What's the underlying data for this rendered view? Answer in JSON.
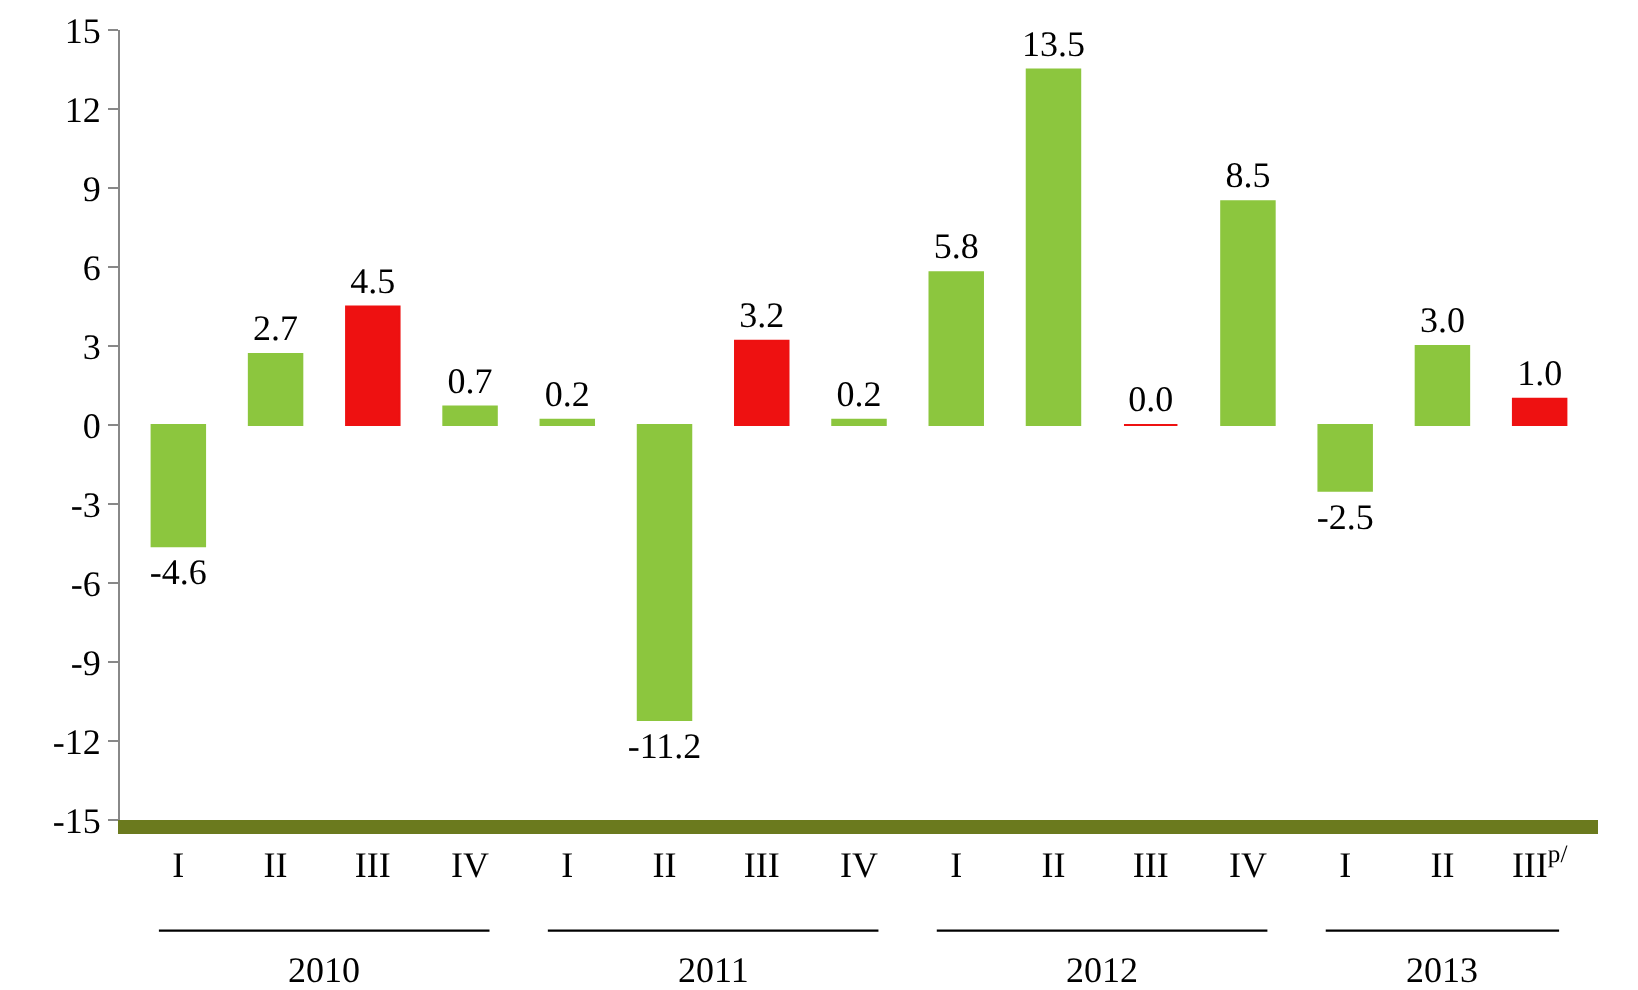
{
  "chart_data": {
    "type": "bar",
    "categories": [
      "I",
      "II",
      "III",
      "IV",
      "I",
      "II",
      "III",
      "IV",
      "I",
      "II",
      "III",
      "IV",
      "I",
      "II",
      "III$^{p/}$"
    ],
    "values": [
      -4.6,
      2.7,
      4.5,
      0.7,
      0.2,
      -11.2,
      3.2,
      0.2,
      5.8,
      13.5,
      0.0,
      8.5,
      -2.5,
      3.0,
      1.0
    ],
    "value_labels": [
      "-4.6",
      "2.7",
      "4.5",
      "0.7",
      "0.2",
      "-11.2",
      "3.2",
      "0.2",
      "5.8",
      "13.5",
      "0.0",
      "8.5",
      "-2.5",
      "3.0",
      "1.0"
    ],
    "colors": [
      "#8cc63e",
      "#8cc63e",
      "#ee1111",
      "#8cc63e",
      "#8cc63e",
      "#8cc63e",
      "#ee1111",
      "#8cc63e",
      "#8cc63e",
      "#8cc63e",
      "#ee1111",
      "#8cc63e",
      "#8cc63e",
      "#8cc63e",
      "#ee1111"
    ],
    "ylim": [
      -15,
      15
    ],
    "yticks": [
      -15,
      -12,
      -9,
      -6,
      -3,
      0,
      3,
      6,
      9,
      12,
      15
    ],
    "grid": false,
    "annotations": [
      "2010",
      "2011",
      "2012",
      "2013"
    ]
  }
}
